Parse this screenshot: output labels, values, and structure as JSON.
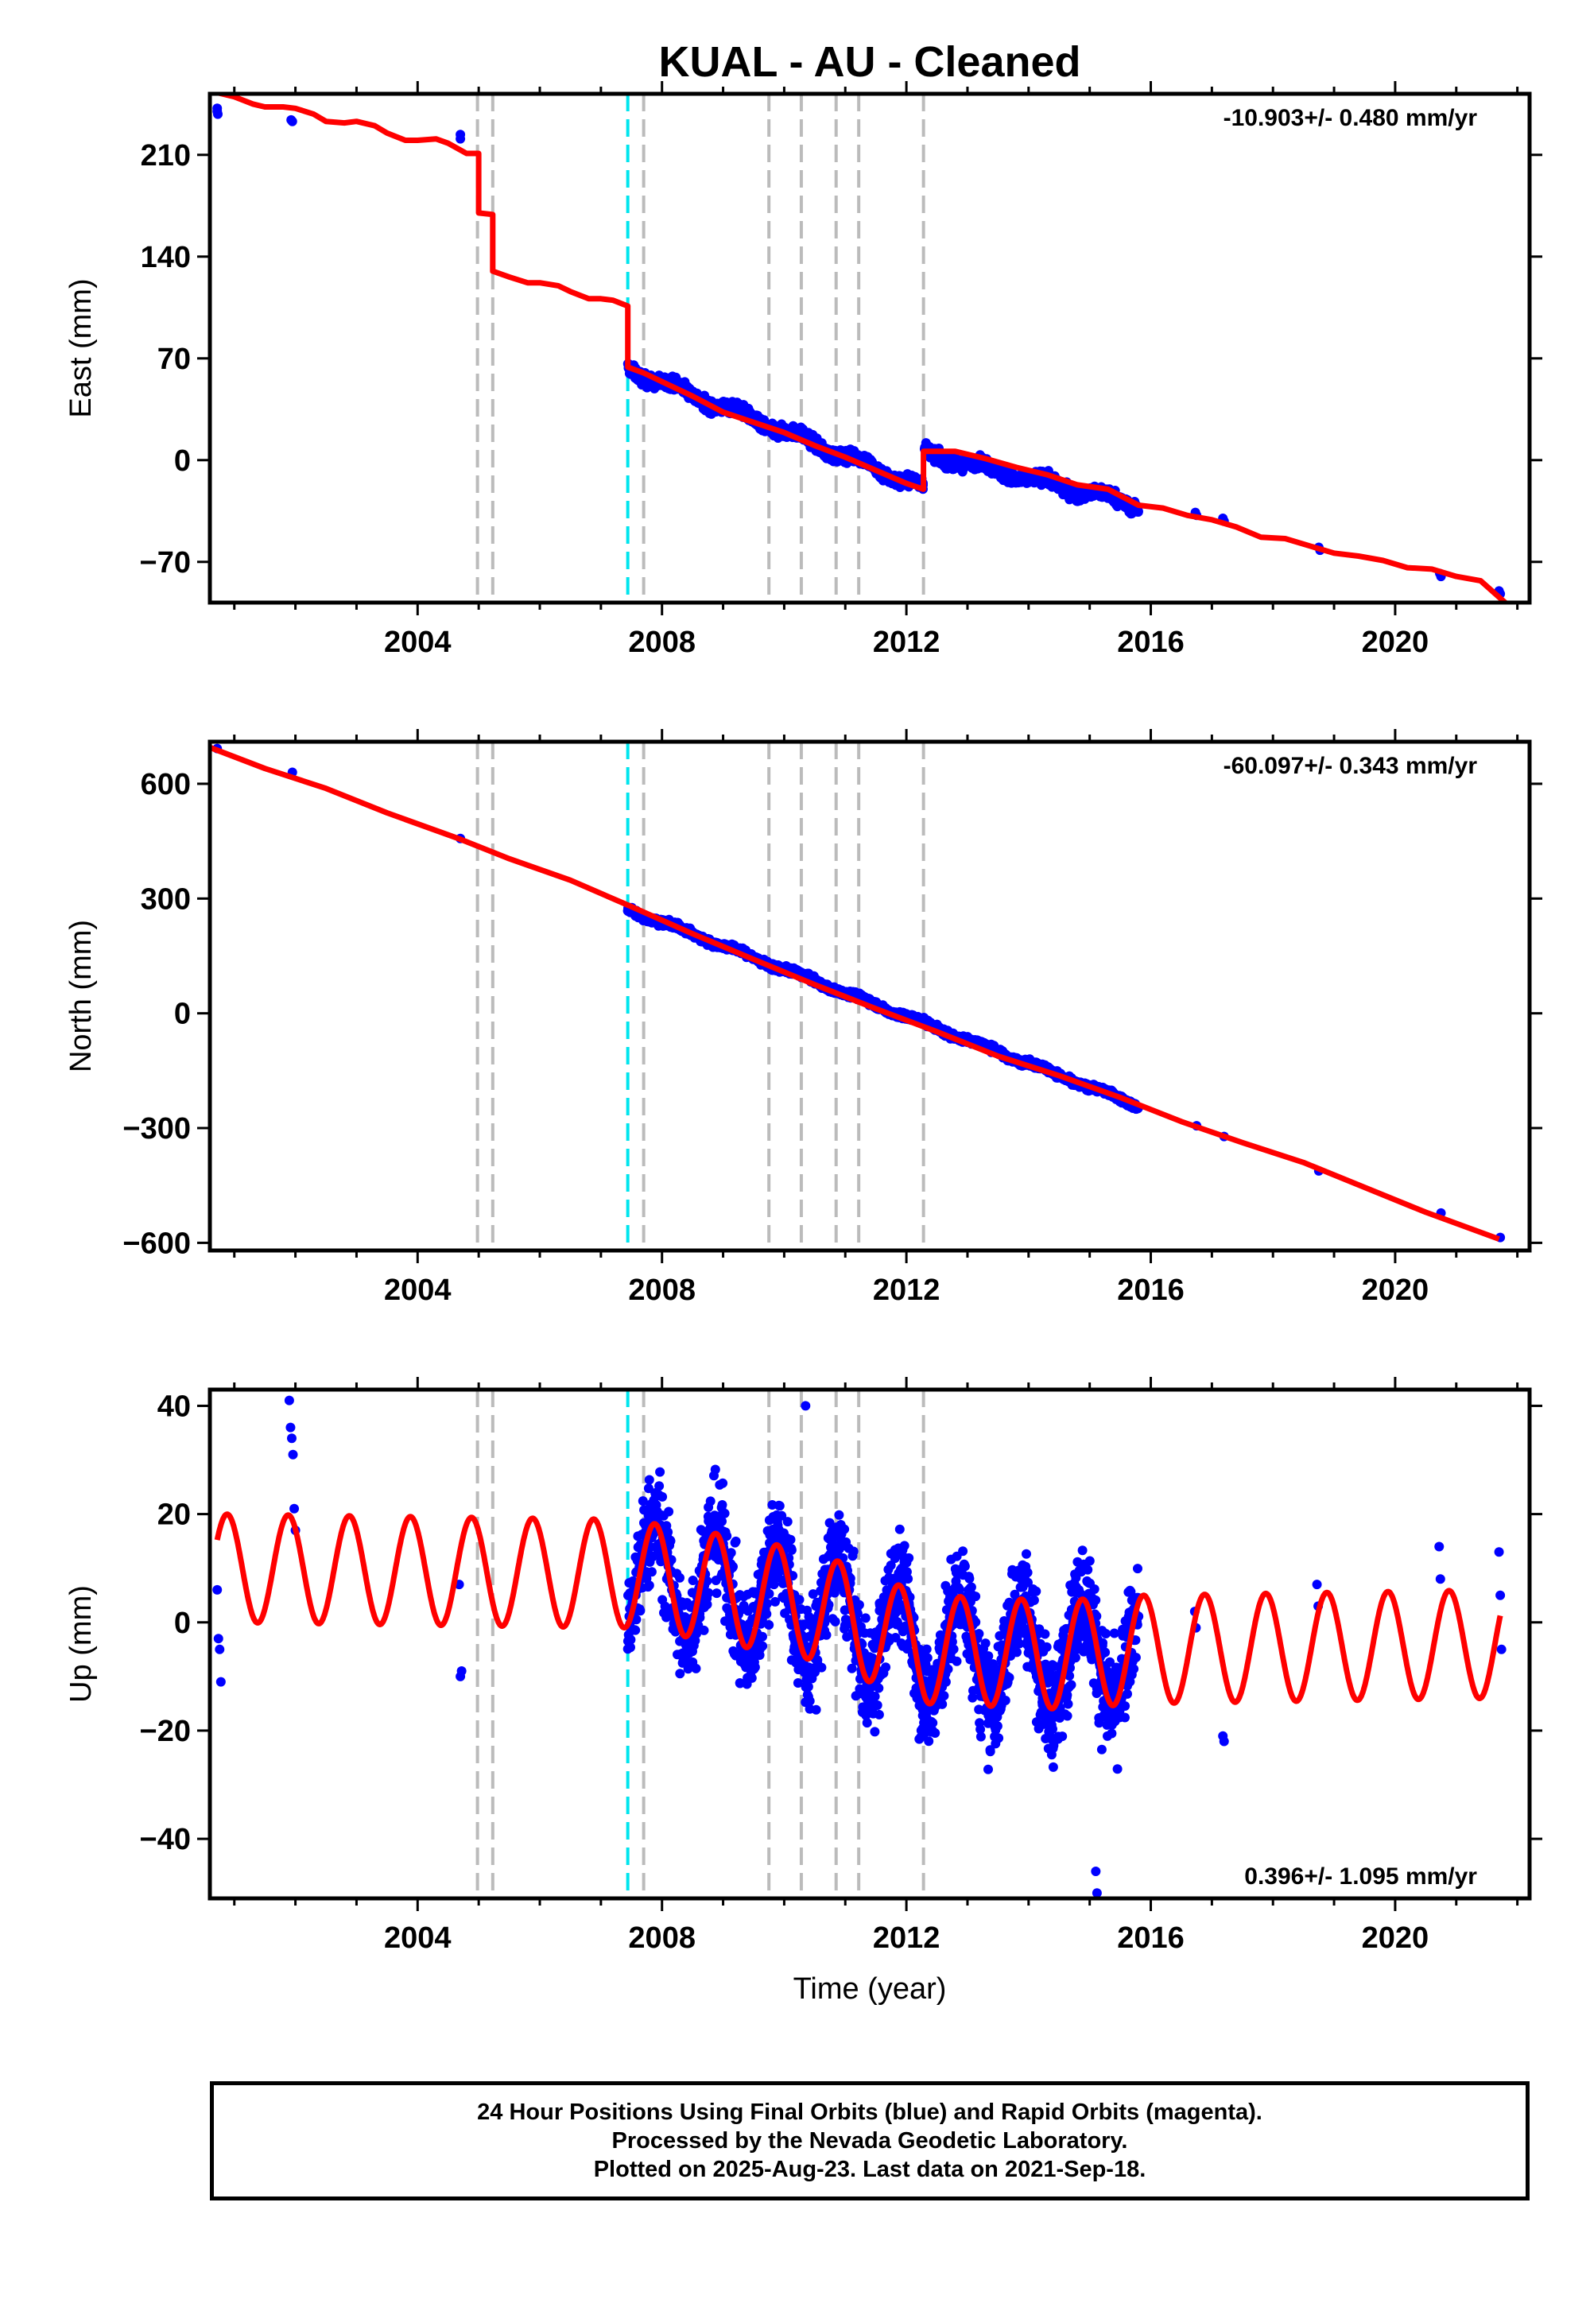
{
  "title": "KUAL  - AU - Cleaned",
  "xlabel": "Time (year)",
  "footer": {
    "line1": "24 Hour Positions Using Final Orbits (blue) and Rapid Orbits (magenta).",
    "line2": "Processed by the Nevada Geodetic Laboratory.",
    "line3": "Plotted on 2025-Aug-23. Last data on 2021-Sep-18."
  },
  "colors": {
    "data": "#0000ff",
    "model": "#ff0000",
    "event_gray": "#bbbbbb",
    "event_cyan": "#00e5ee"
  },
  "chart_data": [
    {
      "type": "scatter",
      "ylabel": "East (mm)",
      "xlim": [
        2000.6,
        2022.2
      ],
      "ylim": [
        -98,
        252
      ],
      "xticks": [
        2004,
        2008,
        2012,
        2016,
        2020
      ],
      "yticks": [
        210,
        140,
        70,
        0,
        -70
      ],
      "ytick_labels": [
        "210",
        "140",
        "70",
        "0",
        "−70"
      ],
      "rate_text": "-10.903+/- 0.480 mm/yr",
      "events_gray": [
        2004.98,
        2005.23,
        2007.7,
        2009.75,
        2010.28,
        2010.85,
        2011.22,
        2012.28
      ],
      "events_cyan": [
        2007.44
      ],
      "model": [
        [
          2000.6,
          254
        ],
        [
          2001.0,
          250
        ],
        [
          2001.3,
          245
        ],
        [
          2001.5,
          243
        ],
        [
          2001.8,
          243
        ],
        [
          2002.0,
          242
        ],
        [
          2002.3,
          238
        ],
        [
          2002.5,
          233
        ],
        [
          2002.8,
          232
        ],
        [
          2003.0,
          233
        ],
        [
          2003.3,
          230
        ],
        [
          2003.5,
          225
        ],
        [
          2003.8,
          220
        ],
        [
          2004.0,
          220
        ],
        [
          2004.3,
          221
        ],
        [
          2004.5,
          218
        ],
        [
          2004.8,
          211
        ],
        [
          2005.0,
          211
        ],
        [
          2005.0,
          170
        ],
        [
          2005.23,
          169
        ],
        [
          2005.23,
          130
        ],
        [
          2005.5,
          126
        ],
        [
          2005.8,
          122
        ],
        [
          2006.0,
          122
        ],
        [
          2006.3,
          120
        ],
        [
          2006.5,
          116
        ],
        [
          2006.8,
          111
        ],
        [
          2007.0,
          111
        ],
        [
          2007.2,
          110
        ],
        [
          2007.44,
          106
        ],
        [
          2007.44,
          64
        ],
        [
          2007.7,
          60
        ],
        [
          2008.0,
          54
        ],
        [
          2008.5,
          44
        ],
        [
          2009.0,
          33
        ],
        [
          2009.5,
          26
        ],
        [
          2010.0,
          19
        ],
        [
          2010.5,
          10
        ],
        [
          2011.0,
          2
        ],
        [
          2011.5,
          -7
        ],
        [
          2012.0,
          -16
        ],
        [
          2012.28,
          -20
        ],
        [
          2012.28,
          6
        ],
        [
          2012.8,
          6
        ],
        [
          2013.3,
          1
        ],
        [
          2013.8,
          -5
        ],
        [
          2014.3,
          -10
        ],
        [
          2014.8,
          -17
        ],
        [
          2015.3,
          -20
        ],
        [
          2015.8,
          -31
        ],
        [
          2016.2,
          -33
        ],
        [
          2016.6,
          -38
        ],
        [
          2017.0,
          -41
        ],
        [
          2017.4,
          -46
        ],
        [
          2017.8,
          -53
        ],
        [
          2018.2,
          -54
        ],
        [
          2018.6,
          -59
        ],
        [
          2019.0,
          -64
        ],
        [
          2019.4,
          -66
        ],
        [
          2019.8,
          -69
        ],
        [
          2020.2,
          -74
        ],
        [
          2020.6,
          -75
        ],
        [
          2021.0,
          -80
        ],
        [
          2021.4,
          -83
        ],
        [
          2021.8,
          -98
        ]
      ],
      "points": [
        [
          2000.72,
          242
        ],
        [
          2000.72,
          240
        ],
        [
          2000.73,
          238
        ],
        [
          2001.93,
          234
        ],
        [
          2001.95,
          233
        ],
        [
          2004.7,
          224
        ],
        [
          2004.7,
          221
        ],
        [
          2016.73,
          -36
        ],
        [
          2016.75,
          -38
        ],
        [
          2017.18,
          -40
        ],
        [
          2017.2,
          -42
        ],
        [
          2018.75,
          -60
        ],
        [
          2018.77,
          -62
        ],
        [
          2020.73,
          -78
        ],
        [
          2020.75,
          -80
        ],
        [
          2021.7,
          -90
        ],
        [
          2021.72,
          -92
        ]
      ],
      "dense_segments": [
        {
          "x0": 2007.44,
          "x1": 2012.28,
          "y0": 63,
          "y1": -19,
          "amp": 3,
          "spread": 3
        },
        {
          "x0": 2012.3,
          "x1": 2015.8,
          "y0": 5,
          "y1": -31,
          "amp": 3,
          "spread": 3
        }
      ]
    },
    {
      "type": "scatter",
      "ylabel": "North (mm)",
      "xlim": [
        2000.6,
        2022.2
      ],
      "ylim": [
        -620,
        710
      ],
      "xticks": [
        2004,
        2008,
        2012,
        2016,
        2020
      ],
      "yticks": [
        600,
        300,
        0,
        -300,
        -600
      ],
      "ytick_labels": [
        "600",
        "300",
        "0",
        "−300",
        "−600"
      ],
      "rate_text": "-60.097+/- 0.343 mm/yr",
      "events_gray": [
        2004.98,
        2005.23,
        2007.7,
        2009.75,
        2010.28,
        2010.85,
        2011.22,
        2012.28
      ],
      "events_cyan": [
        2007.44
      ],
      "model": [
        [
          2000.6,
          695
        ],
        [
          2001.5,
          640
        ],
        [
          2002.5,
          588
        ],
        [
          2003.5,
          524
        ],
        [
          2004.7,
          455
        ],
        [
          2005.5,
          404
        ],
        [
          2006.5,
          348
        ],
        [
          2007.44,
          283
        ],
        [
          2008.5,
          208
        ],
        [
          2009.5,
          141
        ],
        [
          2010.5,
          75
        ],
        [
          2011.5,
          12
        ],
        [
          2012.5,
          -48
        ],
        [
          2013.5,
          -112
        ],
        [
          2014.5,
          -163
        ],
        [
          2015.5,
          -220
        ],
        [
          2016.5,
          -283
        ],
        [
          2017.5,
          -338
        ],
        [
          2018.5,
          -390
        ],
        [
          2019.5,
          -455
        ],
        [
          2020.5,
          -520
        ],
        [
          2021.7,
          -590
        ]
      ],
      "points": [
        [
          2000.72,
          692
        ],
        [
          2001.95,
          630
        ],
        [
          2004.7,
          457
        ],
        [
          2016.75,
          -294
        ],
        [
          2017.2,
          -322
        ],
        [
          2018.75,
          -412
        ],
        [
          2020.75,
          -522
        ],
        [
          2021.72,
          -586
        ]
      ],
      "dense_segments": [
        {
          "x0": 2007.44,
          "x1": 2015.8,
          "y0": 272,
          "y1": -242,
          "amp": 5,
          "spread": 6
        }
      ]
    },
    {
      "type": "scatter",
      "ylabel": "Up (mm)",
      "xlim": [
        2000.6,
        2022.2
      ],
      "ylim": [
        -51,
        43
      ],
      "xticks": [
        2004,
        2008,
        2012,
        2016,
        2020
      ],
      "yticks": [
        40,
        20,
        0,
        -20,
        -40
      ],
      "ytick_labels": [
        "40",
        "20",
        "0",
        "−20",
        "−40"
      ],
      "rate_text": "0.396+/- 1.095 mm/yr",
      "events_gray": [
        2004.98,
        2005.23,
        2007.7,
        2009.75,
        2010.28,
        2010.85,
        2011.22,
        2012.28
      ],
      "events_cyan": [
        2007.44
      ],
      "model_sine": {
        "x0": 2000.72,
        "x1": 2021.72,
        "amplitude": 10,
        "period": 1.0,
        "phase": 0.55,
        "offset_pts": [
          [
            2000.72,
            10
          ],
          [
            2007.4,
            9
          ],
          [
            2008.6,
            7
          ],
          [
            2010.5,
            3
          ],
          [
            2012.3,
            -5
          ],
          [
            2014.5,
            -6
          ],
          [
            2015.9,
            -5
          ],
          [
            2021.72,
            -4
          ]
        ]
      },
      "points": [
        [
          2000.72,
          6
        ],
        [
          2000.74,
          -3
        ],
        [
          2000.76,
          -5
        ],
        [
          2000.78,
          -11
        ],
        [
          2001.9,
          41
        ],
        [
          2001.92,
          36
        ],
        [
          2001.94,
          34
        ],
        [
          2001.96,
          31
        ],
        [
          2001.98,
          21
        ],
        [
          2002.0,
          17
        ],
        [
          2004.68,
          7
        ],
        [
          2004.7,
          -10
        ],
        [
          2004.72,
          -9
        ],
        [
          2010.35,
          40
        ],
        [
          2015.1,
          -46
        ],
        [
          2015.12,
          -50
        ],
        [
          2016.72,
          2
        ],
        [
          2016.74,
          -1
        ],
        [
          2017.18,
          -21
        ],
        [
          2017.2,
          -22
        ],
        [
          2018.72,
          7
        ],
        [
          2018.74,
          3
        ],
        [
          2020.72,
          14
        ],
        [
          2020.74,
          8
        ],
        [
          2021.7,
          13
        ],
        [
          2021.72,
          5
        ],
        [
          2021.74,
          -5
        ]
      ],
      "dense_segments": [
        {
          "x0": 2007.44,
          "x1": 2015.8,
          "noise": 7
        }
      ]
    }
  ]
}
